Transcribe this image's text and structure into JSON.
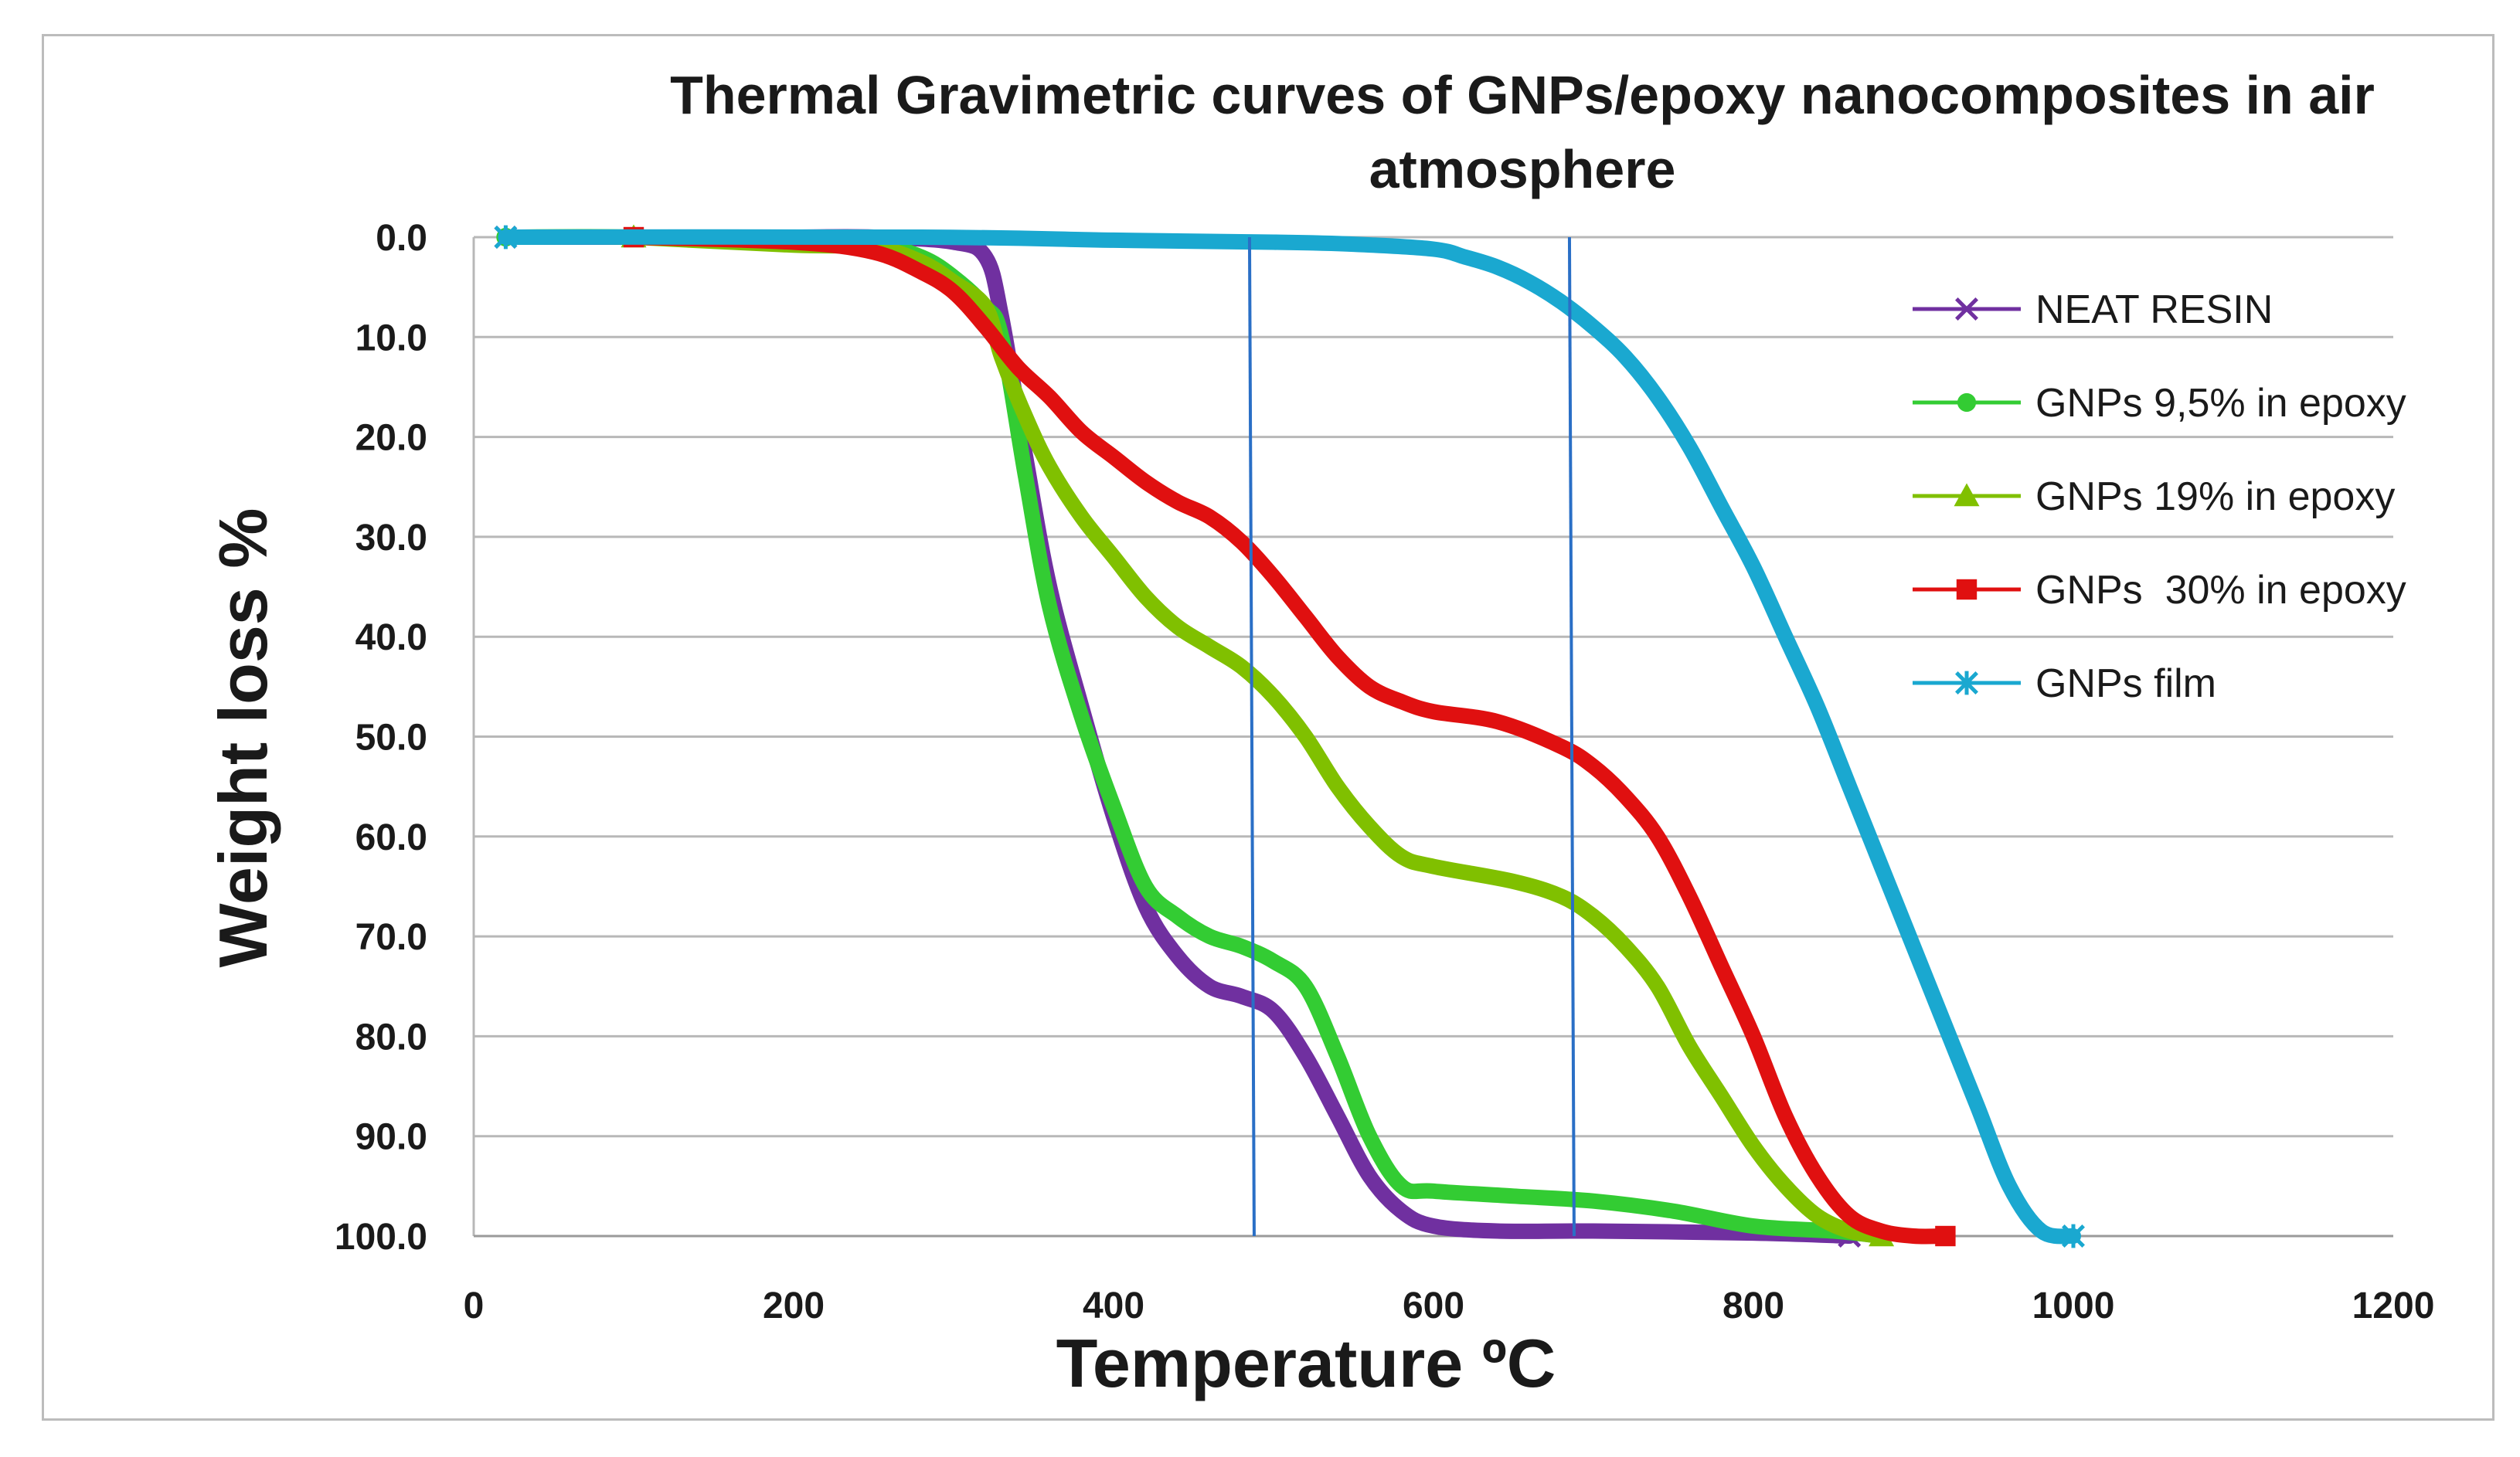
{
  "chart_data": {
    "type": "line",
    "title_lines": [
      "Thermal Gravimetric curves of GNPs/epoxy nanocomposites in air",
      "atmosphere"
    ],
    "xlabel": "Temperature ºC",
    "ylabel": "Weight loss %",
    "xlim": [
      0,
      1200
    ],
    "ylim": [
      0,
      100
    ],
    "y_inverted": true,
    "x_ticks": [
      0,
      200,
      400,
      600,
      800,
      1000,
      1200
    ],
    "x_tick_labels": [
      "0",
      "200",
      "400",
      "600",
      "800",
      "1000",
      "1200"
    ],
    "y_ticks": [
      0,
      10,
      20,
      30,
      40,
      50,
      60,
      70,
      80,
      90,
      100
    ],
    "y_tick_labels": [
      "0.0",
      "10.0",
      "20.0",
      "30.0",
      "40.0",
      "50.0",
      "60.0",
      "70.0",
      "80.0",
      "90.0",
      "100.0"
    ],
    "grid": "horizontal",
    "legend_position": "right",
    "vertical_lines": [
      485,
      685
    ],
    "series": [
      {
        "name": "NEAT RESIN",
        "color": "#7030a0",
        "marker": "x",
        "x": [
          20,
          100,
          150,
          200,
          250,
          300,
          320,
          330,
          345,
          360,
          380,
          400,
          420,
          440,
          460,
          480,
          500,
          520,
          540,
          560,
          580,
          600,
          640,
          700,
          800,
          860
        ],
        "y": [
          0,
          0,
          0,
          0,
          0,
          0.5,
          2,
          8,
          22,
          35,
          47,
          58,
          67,
          72,
          75,
          76,
          77.5,
          82,
          88,
          94,
          97.5,
          99,
          99.5,
          99.5,
          99.7,
          100
        ]
      },
      {
        "name": "GNPs 9,5% in epoxy",
        "color": "#33cc33",
        "marker": "circle",
        "x": [
          20,
          100,
          200,
          250,
          280,
          300,
          320,
          330,
          345,
          360,
          380,
          400,
          420,
          440,
          460,
          480,
          500,
          520,
          540,
          560,
          580,
          600,
          650,
          700,
          750,
          800,
          850,
          880
        ],
        "y": [
          0,
          0,
          0.5,
          0.7,
          2,
          4,
          7,
          10,
          24,
          37,
          48,
          57,
          65,
          68,
          70,
          71,
          72.5,
          75,
          82,
          90,
          95,
          95.5,
          96,
          96.5,
          97.5,
          99,
          99.5,
          100
        ]
      },
      {
        "name": "GNPs 19% in epoxy",
        "color": "#80c000",
        "marker": "triangle",
        "x": [
          100,
          200,
          250,
          280,
          300,
          320,
          330,
          345,
          360,
          380,
          400,
          420,
          440,
          460,
          480,
          500,
          520,
          540,
          560,
          580,
          600,
          650,
          680,
          700,
          720,
          740,
          760,
          780,
          800,
          820,
          840,
          860,
          880
        ],
        "y": [
          0,
          0.8,
          1,
          2.5,
          4.5,
          7,
          12,
          18,
          23,
          28,
          32,
          36,
          39,
          41,
          43,
          46,
          50,
          55,
          59,
          62,
          63,
          64.5,
          66,
          68,
          71,
          75,
          81,
          86,
          91,
          95,
          98,
          99.5,
          100
        ]
      },
      {
        "name": "GNPs  30% in epoxy",
        "color": "#e01010",
        "marker": "square",
        "x": [
          100,
          200,
          250,
          280,
          300,
          320,
          340,
          360,
          380,
          400,
          420,
          440,
          460,
          480,
          500,
          520,
          540,
          560,
          580,
          600,
          640,
          680,
          700,
          720,
          740,
          760,
          780,
          800,
          820,
          840,
          860,
          880,
          900,
          920
        ],
        "y": [
          0,
          0.5,
          1.5,
          3.5,
          5.5,
          9,
          13,
          16,
          19.5,
          22,
          24.5,
          26.5,
          28,
          30.5,
          34,
          38,
          42,
          45,
          46.5,
          47.5,
          48.5,
          51,
          53,
          56,
          60,
          66,
          73,
          80,
          88,
          94,
          98,
          99.5,
          100,
          100
        ]
      },
      {
        "name": "GNPs film",
        "color": "#1aa8d0",
        "marker": "star",
        "x": [
          20,
          280,
          400,
          500,
          550,
          600,
          620,
          640,
          660,
          680,
          700,
          720,
          740,
          760,
          780,
          800,
          820,
          840,
          860,
          880,
          900,
          920,
          940,
          960,
          980,
          1000
        ],
        "y": [
          0,
          0,
          0.3,
          0.5,
          0.7,
          1.2,
          2,
          3,
          4.5,
          6.5,
          9,
          12,
          16,
          21,
          27,
          33,
          40,
          47,
          55,
          63,
          71,
          79,
          87,
          95,
          99.5,
          100
        ]
      }
    ]
  }
}
